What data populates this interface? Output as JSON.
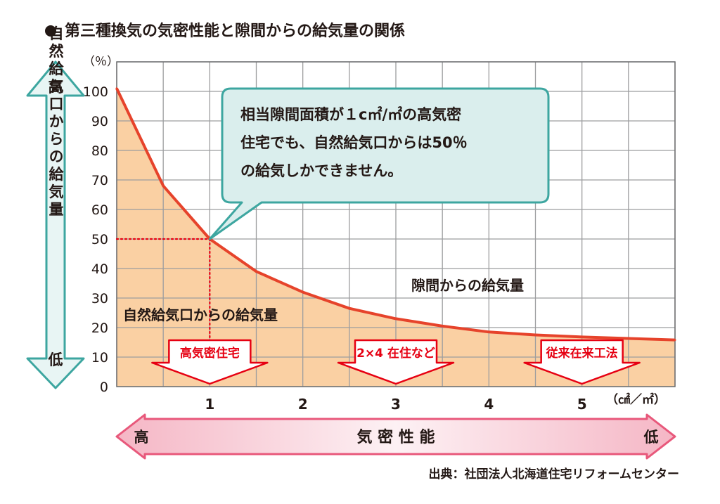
{
  "title": "第三種換気の気密性能と隙間からの給気量の関係",
  "source": "出典：社団法人北海道住宅リフォームセンター",
  "chart_data": {
    "type": "area",
    "y_unit": "（％）",
    "x_unit": "（㎠／㎡）",
    "x_ticks": [
      "1",
      "2",
      "3",
      "4",
      "5"
    ],
    "y_ticks": [
      "100",
      "90",
      "80",
      "70",
      "60",
      "50",
      "40",
      "30",
      "20",
      "10",
      "0"
    ],
    "xlim": [
      0,
      6
    ],
    "ylim": [
      0,
      110
    ],
    "x": [
      0,
      0.5,
      1,
      1.5,
      2,
      2.5,
      3,
      3.5,
      4,
      4.5,
      5,
      5.5,
      6
    ],
    "y": [
      101,
      68,
      50,
      39,
      32,
      26.5,
      23,
      20.5,
      18.5,
      17.5,
      16.8,
      16.3,
      15.8
    ],
    "grid": true,
    "ylabel": "自然給気口からの給気量",
    "ylabel_high": "高",
    "ylabel_low": "低",
    "xaxis_banner": {
      "label": "気 密 性 能",
      "left": "高",
      "right": "低"
    },
    "area_labels": {
      "lower": "自然給気口からの給気量",
      "upper": "隙間からの給気量"
    },
    "callout": {
      "lines": [
        "相当隙間面積が１c㎡/㎡の高気密",
        "住宅でも、自然給気口からは50％",
        "の給気しかできません。"
      ],
      "point": {
        "x": 1,
        "y": 50
      }
    },
    "categories": [
      {
        "label": "高気密住宅",
        "x": 1
      },
      {
        "label": "2×4 在住など",
        "x": 3
      },
      {
        "label": "従来在来工法",
        "x": 5
      }
    ],
    "colors": {
      "fill": "#fad0a3",
      "line": "#e6432b",
      "grid": "#9c9d9f",
      "teal": "#3da6a0",
      "pink": "#e8587b",
      "callout_bg": "#daeeed"
    }
  }
}
